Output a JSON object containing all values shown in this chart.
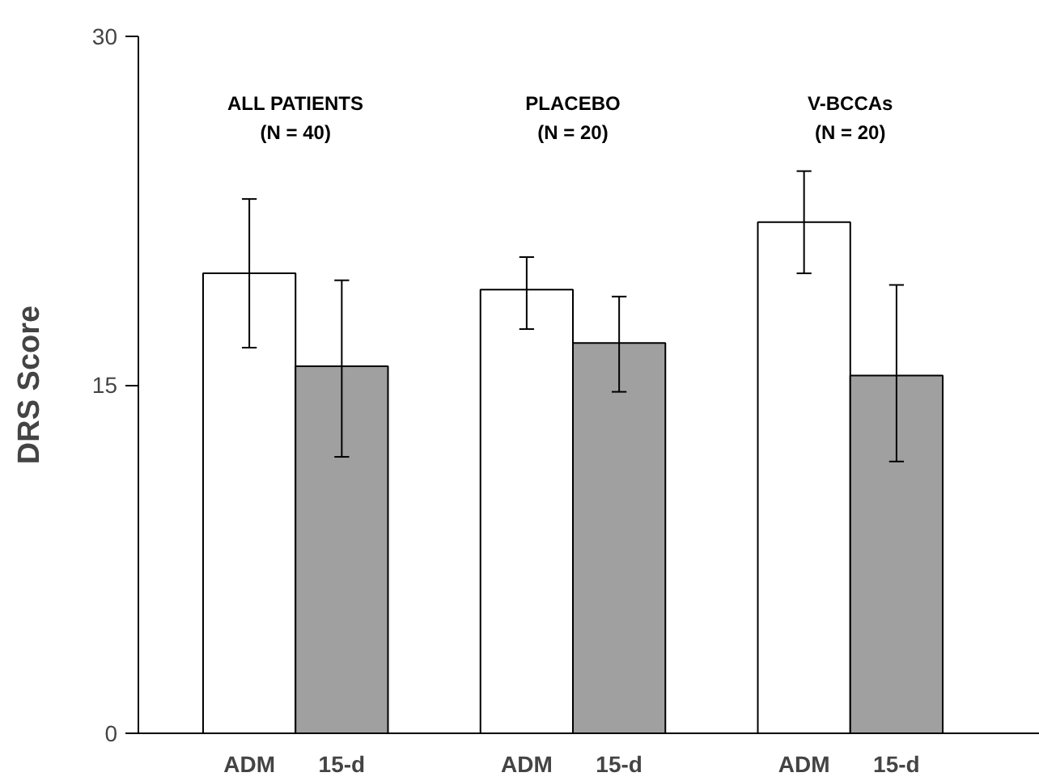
{
  "chart_data": {
    "type": "bar",
    "ylabel": "DRS Score",
    "categories": [
      "ADM",
      "15-d",
      "ADM",
      "15-d",
      "ADM",
      "15-d"
    ],
    "values": [
      19.8,
      15.8,
      19.1,
      16.8,
      22.0,
      15.4
    ],
    "colors": [
      "#ffffff",
      "#a0a0a0",
      "#ffffff",
      "#a0a0a0",
      "#ffffff",
      "#a0a0a0"
    ],
    "errors": [
      [
        16.6,
        23.0
      ],
      [
        11.9,
        19.5
      ],
      [
        17.4,
        20.5
      ],
      [
        14.7,
        18.8
      ],
      [
        19.8,
        24.2
      ],
      [
        11.7,
        19.3
      ]
    ],
    "ylim": [
      0,
      30
    ],
    "yticks": [
      0,
      15,
      30
    ],
    "annotations": [
      "ALL PATIENTS\n(N = 40)",
      "PLACEBO\n(N = 20)",
      "V-BCCAs\n(N = 20)"
    ]
  }
}
